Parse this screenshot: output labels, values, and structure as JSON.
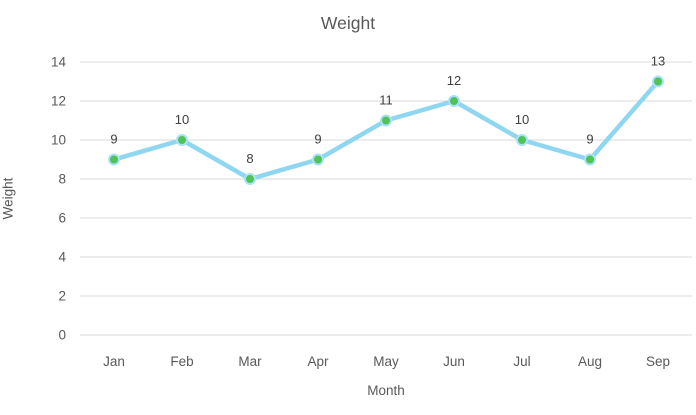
{
  "chart_data": {
    "type": "line",
    "title": "Weight",
    "categories": [
      "Jan",
      "Feb",
      "Mar",
      "Apr",
      "May",
      "Jun",
      "Jul",
      "Aug",
      "Sep"
    ],
    "series": [
      {
        "name": "Weight",
        "values": [
          9,
          10,
          8,
          9,
          11,
          12,
          10,
          9,
          13
        ]
      }
    ],
    "xlabel": "Month",
    "ylabel": "Weight",
    "ylim": [
      0,
      14
    ],
    "ytick_step": 2,
    "yticks": [
      0,
      2,
      4,
      6,
      8,
      10,
      12,
      14
    ],
    "grid": true,
    "legend": "none",
    "data_labels": [
      9,
      10,
      8,
      9,
      11,
      12,
      10,
      9,
      13
    ],
    "colors": {
      "line": "#8FD6F1",
      "marker_fill": "#4FC355",
      "marker_halo": "#A9E2F8",
      "gridline": "#D9D9D9",
      "tick_text": "#595959",
      "title_text": "#595959",
      "data_label_text": "#404040"
    }
  }
}
